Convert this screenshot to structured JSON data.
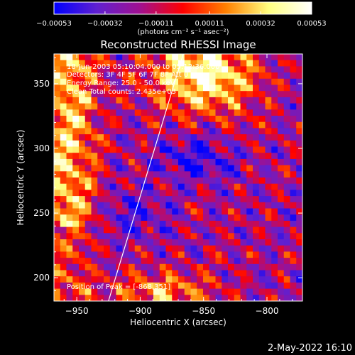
{
  "chart_data": {
    "type": "heatmap",
    "title": "Reconstructed RHESSI Image",
    "xlabel": "Heliocentric X (arcsec)",
    "ylabel": "Heliocentric Y (arcsec)",
    "xlim": [
      -968,
      -772
    ],
    "ylim": [
      182,
      373
    ],
    "xticks": [
      {
        "value": -950,
        "label": "−950"
      },
      {
        "value": -900,
        "label": "−900"
      },
      {
        "value": -850,
        "label": "−850"
      },
      {
        "value": -800,
        "label": "−800"
      }
    ],
    "yticks": [
      {
        "value": 200,
        "label": "200"
      },
      {
        "value": 250,
        "label": "250"
      },
      {
        "value": 300,
        "label": "300"
      },
      {
        "value": 350,
        "label": "350"
      }
    ],
    "colorbar": {
      "range": [
        -0.00053,
        0.00053
      ],
      "ticks": [
        {
          "value": -0.00053,
          "label": "−0.00053"
        },
        {
          "value": -0.00032,
          "label": "−0.00032"
        },
        {
          "value": -0.00011,
          "label": "−0.00011"
        },
        {
          "value": 0.00011,
          "label": "0.00011"
        },
        {
          "value": 0.00032,
          "label": "0.00032"
        },
        {
          "value": 0.00053,
          "label": "0.00053"
        }
      ],
      "unit_label": "(photons cm⁻² s⁻¹ asec⁻²)",
      "colormap": [
        "#0000ff",
        "#6020d0",
        "#a01090",
        "#ff0000",
        "#ff8000",
        "#ffff80",
        "#ffffff"
      ]
    },
    "annotations": {
      "time": "18-Jun-2003 05:10:04.000 to 05:12:36.000",
      "detectors": "Detectors: 3F 4F 5F 6F 7F 8F  Att 0",
      "energy": "Energy Range: 25.0 - 50.0 keV",
      "clean": "Clean     Total counts: 2.435e+03",
      "peak": "Position of Peak = [-868,351]"
    },
    "peak": {
      "x": -868,
      "y": 351
    },
    "limb_line": [
      {
        "x": -925,
        "y": 182
      },
      {
        "x": -866,
        "y": 373
      }
    ],
    "grid": false,
    "legend": "none"
  },
  "footer": {
    "date": "2-May-2022 16:10"
  }
}
